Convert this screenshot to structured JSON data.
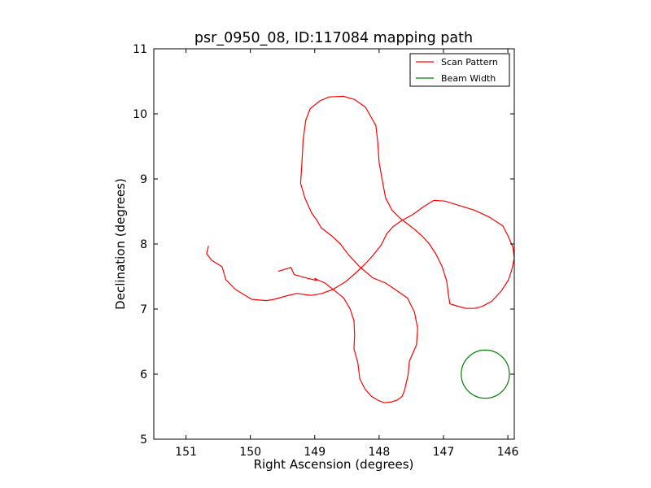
{
  "colors": {
    "scan": "#ff0000",
    "beam": "#008000",
    "axes": "#000000",
    "background": "#ffffff"
  },
  "chart_data": {
    "type": "line",
    "title": "psr_0950_08, ID:117084 mapping path",
    "xlabel": "Right Ascension (degrees)",
    "ylabel": "Declination (degrees)",
    "xlim": [
      151.5,
      145.9
    ],
    "ylim": [
      5,
      11
    ],
    "x_inverted": true,
    "xticks": [
      151,
      150,
      149,
      148,
      147,
      146
    ],
    "yticks": [
      5,
      6,
      7,
      8,
      9,
      10,
      11
    ],
    "grid": false,
    "legend_position": "top-right",
    "series": [
      {
        "name": "Scan Pattern",
        "type": "line",
        "points": [
          [
            149.57,
            7.58
          ],
          [
            149.37,
            7.64
          ],
          [
            149.32,
            7.53
          ],
          [
            149.1,
            7.47
          ],
          [
            148.97,
            7.44
          ],
          [
            149.0,
            7.47
          ],
          [
            148.84,
            7.4
          ],
          [
            148.7,
            7.29
          ],
          [
            148.55,
            7.17
          ],
          [
            148.45,
            7.0
          ],
          [
            148.39,
            6.82
          ],
          [
            148.38,
            6.6
          ],
          [
            148.39,
            6.39
          ],
          [
            148.33,
            6.17
          ],
          [
            148.3,
            5.93
          ],
          [
            148.22,
            5.77
          ],
          [
            148.12,
            5.66
          ],
          [
            148.02,
            5.6
          ],
          [
            147.92,
            5.56
          ],
          [
            147.82,
            5.57
          ],
          [
            147.72,
            5.6
          ],
          [
            147.64,
            5.66
          ],
          [
            147.6,
            5.77
          ],
          [
            147.55,
            5.99
          ],
          [
            147.53,
            6.2
          ],
          [
            147.42,
            6.45
          ],
          [
            147.4,
            6.7
          ],
          [
            147.45,
            6.95
          ],
          [
            147.56,
            7.17
          ],
          [
            147.75,
            7.3
          ],
          [
            147.9,
            7.4
          ],
          [
            148.1,
            7.48
          ],
          [
            148.3,
            7.65
          ],
          [
            148.48,
            7.84
          ],
          [
            148.6,
            8.0
          ],
          [
            148.73,
            8.12
          ],
          [
            148.9,
            8.25
          ],
          [
            148.97,
            8.37
          ],
          [
            149.05,
            8.48
          ],
          [
            149.15,
            8.7
          ],
          [
            149.22,
            8.93
          ],
          [
            149.2,
            9.22
          ],
          [
            149.18,
            9.6
          ],
          [
            149.14,
            9.9
          ],
          [
            149.07,
            10.08
          ],
          [
            148.92,
            10.2
          ],
          [
            148.78,
            10.26
          ],
          [
            148.55,
            10.27
          ],
          [
            148.38,
            10.22
          ],
          [
            148.21,
            10.1
          ],
          [
            148.05,
            9.82
          ],
          [
            148.02,
            9.55
          ],
          [
            148.0,
            9.25
          ],
          [
            147.95,
            8.98
          ],
          [
            147.9,
            8.71
          ],
          [
            147.8,
            8.52
          ],
          [
            147.68,
            8.4
          ],
          [
            147.52,
            8.28
          ],
          [
            147.42,
            8.2
          ],
          [
            147.33,
            8.12
          ],
          [
            147.22,
            8.0
          ],
          [
            147.12,
            7.85
          ],
          [
            147.02,
            7.65
          ],
          [
            146.95,
            7.43
          ],
          [
            146.92,
            7.2
          ],
          [
            146.9,
            7.08
          ],
          [
            146.8,
            7.05
          ],
          [
            146.65,
            7.01
          ],
          [
            146.52,
            7.01
          ],
          [
            146.4,
            7.04
          ],
          [
            146.25,
            7.12
          ],
          [
            146.1,
            7.28
          ],
          [
            145.99,
            7.45
          ],
          [
            145.94,
            7.6
          ],
          [
            145.9,
            7.78
          ],
          [
            145.92,
            7.95
          ],
          [
            146.0,
            8.13
          ],
          [
            146.08,
            8.28
          ],
          [
            146.3,
            8.42
          ],
          [
            146.52,
            8.52
          ],
          [
            146.75,
            8.59
          ],
          [
            146.98,
            8.66
          ],
          [
            147.15,
            8.67
          ],
          [
            147.3,
            8.58
          ],
          [
            147.48,
            8.45
          ],
          [
            147.65,
            8.36
          ],
          [
            147.78,
            8.27
          ],
          [
            147.88,
            8.16
          ],
          [
            147.97,
            7.98
          ],
          [
            148.1,
            7.82
          ],
          [
            148.23,
            7.68
          ],
          [
            148.37,
            7.55
          ],
          [
            148.52,
            7.42
          ],
          [
            148.72,
            7.3
          ],
          [
            148.89,
            7.24
          ],
          [
            149.05,
            7.21
          ],
          [
            149.28,
            7.24
          ],
          [
            149.45,
            7.2
          ],
          [
            149.63,
            7.15
          ],
          [
            149.75,
            7.13
          ],
          [
            149.98,
            7.15
          ],
          [
            150.23,
            7.3
          ],
          [
            150.38,
            7.45
          ],
          [
            150.44,
            7.65
          ],
          [
            150.6,
            7.75
          ],
          [
            150.68,
            7.85
          ],
          [
            150.65,
            7.97
          ]
        ]
      },
      {
        "name": "Beam Width",
        "type": "circle",
        "center": [
          146.35,
          6.0
        ],
        "radius": 0.37
      }
    ]
  }
}
